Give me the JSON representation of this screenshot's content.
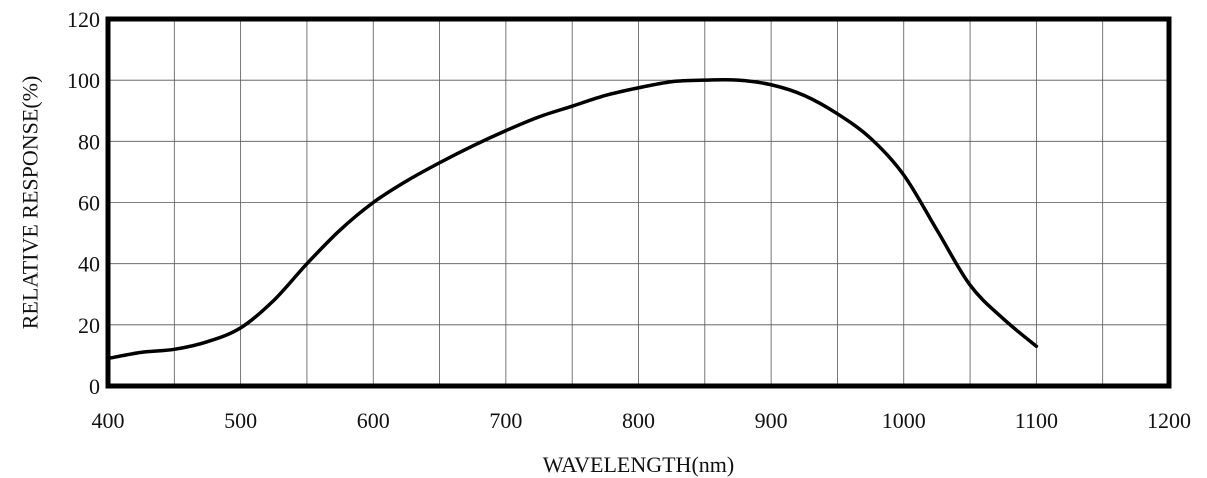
{
  "chart_data": {
    "type": "line",
    "title": "",
    "xlabel": "WAVELENGTH(nm)",
    "ylabel": "RELATIVE RESPONSE(%)",
    "xlim": [
      400,
      1200
    ],
    "ylim": [
      0,
      120
    ],
    "x_ticks": [
      400,
      500,
      600,
      700,
      800,
      900,
      1000,
      1100,
      1200
    ],
    "y_ticks": [
      0,
      20,
      40,
      60,
      80,
      100,
      120
    ],
    "x_minor_step": 50,
    "grid": true,
    "legend": "none",
    "series": [
      {
        "x": [
          400,
          425,
          450,
          475,
          500,
          525,
          550,
          575,
          600,
          625,
          650,
          675,
          700,
          725,
          750,
          775,
          800,
          825,
          850,
          875,
          900,
          925,
          950,
          975,
          1000,
          1025,
          1050,
          1075,
          1100
        ],
        "y": [
          9,
          11,
          12,
          14.5,
          19,
          28,
          40,
          51,
          60,
          67,
          73,
          78.5,
          83.5,
          88,
          91.5,
          95,
          97.5,
          99.5,
          100,
          100,
          98.5,
          95,
          89,
          81,
          69,
          51,
          33,
          22,
          13
        ],
        "color": "#000000"
      }
    ]
  }
}
